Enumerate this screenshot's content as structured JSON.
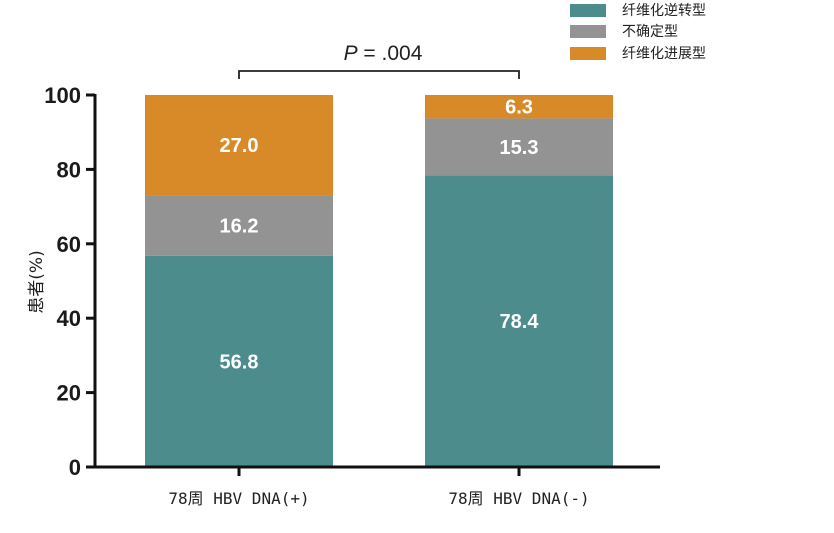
{
  "chart_data": {
    "type": "bar",
    "stacked": true,
    "categories": [
      "78周 HBV DNA(+)",
      "78周 HBV DNA(-)"
    ],
    "series": [
      {
        "name": "纤维化逆转型",
        "values": [
          56.8,
          78.4
        ],
        "color": "#4d8c8c"
      },
      {
        "name": "不确定型",
        "values": [
          16.2,
          15.3
        ],
        "color": "#939393"
      },
      {
        "name": "纤维化进展型",
        "values": [
          27.0,
          6.3
        ],
        "color": "#d98a28"
      }
    ],
    "data_labels": [
      [
        "56.8",
        "78.4"
      ],
      [
        "16.2",
        "15.3"
      ],
      [
        "27.0",
        "6.3"
      ]
    ],
    "ylabel": "患者(%)",
    "ylim": [
      0,
      100
    ],
    "yticks": [
      0,
      20,
      40,
      60,
      80,
      100
    ],
    "legend_position": "top-right",
    "grid": false,
    "annotation": {
      "italic": "P",
      "rest": " = .004"
    }
  }
}
